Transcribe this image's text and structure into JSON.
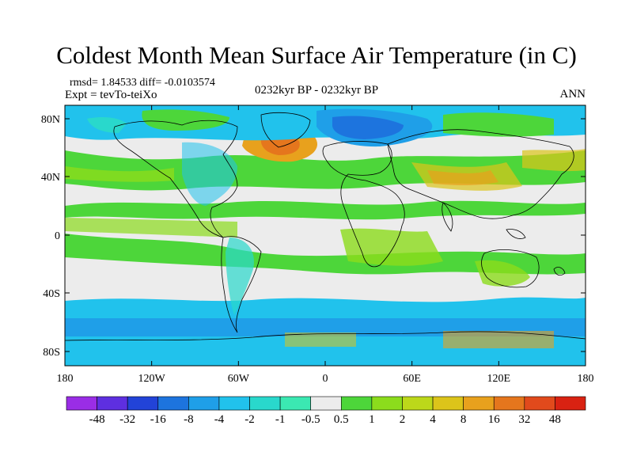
{
  "title": "Coldest Month Mean Surface Air Temperature (in C)",
  "stats": "rmsd= 1.84533  diff= -0.0103574",
  "experiment": "Expt = tevTo-teiXo",
  "period": "0232kyr BP - 0232kyr BP",
  "season": "ANN",
  "lat_ticks": [
    "80N",
    "40N",
    "0",
    "40S",
    "80S"
  ],
  "lon_ticks": [
    "180",
    "120W",
    "60W",
    "0",
    "60E",
    "120E",
    "180"
  ],
  "colorbar": {
    "labels": [
      "-48",
      "-32",
      "-16",
      "-8",
      "-4",
      "-2",
      "-1",
      "-0.5",
      "0.5",
      "1",
      "2",
      "4",
      "8",
      "16",
      "32",
      "48"
    ],
    "colors": [
      "#9a2de6",
      "#5e2fe0",
      "#2243d8",
      "#1d74de",
      "#1f9fe8",
      "#21c2ec",
      "#29d8cc",
      "#3be8b2",
      "#ececec",
      "#4dd63a",
      "#8cdc1c",
      "#bcd81a",
      "#dcc41a",
      "#e8a11d",
      "#e5761d",
      "#e14a1c",
      "#d92212"
    ]
  },
  "palette": {
    "land_default": "#ececec",
    "coastline": "#000000"
  }
}
